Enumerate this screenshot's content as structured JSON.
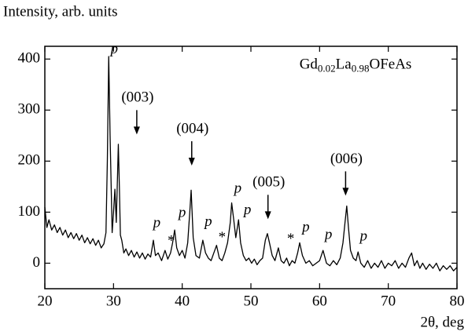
{
  "chart_data": {
    "type": "line",
    "title": [
      {
        "text": "Gd"
      },
      {
        "text": "0.02",
        "subscript": true
      },
      {
        "text": "La"
      },
      {
        "text": "0.98",
        "subscript": true
      },
      {
        "text": "OFeAs"
      }
    ],
    "y_label": "Intensity, arb. units",
    "x_label": "2θ, deg",
    "xlim": [
      20,
      80
    ],
    "ylim": [
      -50,
      425
    ],
    "xticks": [
      20,
      30,
      40,
      50,
      60,
      70,
      80
    ],
    "yticks": [
      0,
      100,
      200,
      300,
      400
    ],
    "x": [
      20,
      20.3,
      20.6,
      21,
      21.4,
      21.8,
      22.2,
      22.6,
      23,
      23.4,
      23.8,
      24.2,
      24.6,
      25,
      25.4,
      25.8,
      26.2,
      26.6,
      27,
      27.4,
      27.8,
      28.2,
      28.6,
      28.9,
      29.1,
      29.3,
      29.5,
      29.8,
      30,
      30.2,
      30.4,
      30.6,
      30.7,
      30.85,
      31,
      31.2,
      31.5,
      31.8,
      32.2,
      32.6,
      33,
      33.4,
      33.8,
      34.2,
      34.6,
      35,
      35.4,
      35.8,
      36.1,
      36.5,
      37,
      37.5,
      37.9,
      38.3,
      38.6,
      38.9,
      39.2,
      39.6,
      40,
      40.4,
      40.8,
      41.1,
      41.3,
      41.6,
      42,
      42.5,
      43,
      43.4,
      43.8,
      44.2,
      44.6,
      45,
      45.4,
      45.8,
      46.2,
      46.6,
      47,
      47.2,
      47.5,
      47.8,
      48.2,
      48.5,
      48.9,
      49.3,
      49.7,
      50.1,
      50.5,
      50.9,
      51.3,
      51.7,
      52.1,
      52.4,
      52.7,
      53.1,
      53.5,
      54,
      54.4,
      54.8,
      55.2,
      55.6,
      56,
      56.4,
      56.8,
      57.1,
      57.5,
      58,
      58.5,
      59,
      59.5,
      60,
      60.5,
      61,
      61.5,
      62,
      62.5,
      63,
      63.4,
      63.7,
      63.95,
      64.2,
      64.5,
      64.9,
      65.3,
      65.6,
      66,
      66.5,
      67,
      67.5,
      68,
      68.5,
      69,
      69.5,
      70,
      70.5,
      71,
      71.5,
      72,
      72.5,
      73,
      73.4,
      73.8,
      74.2,
      74.6,
      75,
      75.5,
      76,
      76.5,
      77,
      77.5,
      78,
      78.5,
      79,
      79.5,
      80
    ],
    "series": [
      {
        "color": "#000000",
        "values": [
          110,
          70,
          85,
          65,
          75,
          60,
          70,
          55,
          65,
          50,
          60,
          48,
          58,
          45,
          55,
          40,
          50,
          38,
          48,
          35,
          45,
          30,
          38,
          60,
          200,
          405,
          250,
          60,
          100,
          145,
          80,
          180,
          233,
          150,
          55,
          45,
          20,
          28,
          15,
          25,
          12,
          22,
          10,
          20,
          8,
          18,
          12,
          45,
          15,
          20,
          5,
          25,
          8,
          20,
          40,
          65,
          30,
          15,
          25,
          10,
          40,
          100,
          143,
          50,
          15,
          10,
          45,
          20,
          10,
          5,
          20,
          35,
          10,
          5,
          20,
          40,
          80,
          118,
          85,
          50,
          85,
          40,
          15,
          5,
          10,
          0,
          8,
          -3,
          5,
          10,
          45,
          58,
          40,
          15,
          5,
          30,
          5,
          0,
          10,
          -5,
          5,
          0,
          20,
          40,
          15,
          0,
          5,
          -5,
          0,
          5,
          25,
          0,
          -5,
          5,
          -3,
          10,
          40,
          80,
          112,
          70,
          25,
          10,
          5,
          22,
          0,
          -8,
          5,
          -10,
          0,
          -8,
          5,
          -10,
          0,
          -5,
          5,
          -10,
          0,
          -8,
          10,
          20,
          -5,
          5,
          -10,
          0,
          -12,
          -2,
          -10,
          0,
          -15,
          -5,
          -12,
          -5,
          -15,
          -8
        ]
      }
    ],
    "annotations": [
      {
        "text": "p",
        "x": 30.1,
        "y": 418,
        "italic": true
      },
      {
        "text": "(003)",
        "x": 33.5,
        "y": 323,
        "arrow": true
      },
      {
        "text": "(004)",
        "x": 41.5,
        "y": 262,
        "arrow": true
      },
      {
        "text": "(005)",
        "x": 52.6,
        "y": 157,
        "arrow": true
      },
      {
        "text": "(006)",
        "x": 63.9,
        "y": 203,
        "arrow": true
      },
      {
        "text": "p",
        "x": 36.3,
        "y": 77,
        "italic": true
      },
      {
        "text": "p",
        "x": 40.0,
        "y": 97,
        "italic": true
      },
      {
        "text": "p",
        "x": 43.8,
        "y": 80,
        "italic": true
      },
      {
        "text": "p",
        "x": 48.1,
        "y": 145,
        "italic": true
      },
      {
        "text": "p",
        "x": 49.5,
        "y": 103,
        "italic": true
      },
      {
        "text": "p",
        "x": 58.0,
        "y": 69,
        "italic": true
      },
      {
        "text": "p",
        "x": 61.3,
        "y": 54,
        "italic": true
      },
      {
        "text": "p",
        "x": 66.4,
        "y": 51,
        "italic": true
      },
      {
        "text": "*",
        "x": 38.4,
        "y": 42
      },
      {
        "text": "*",
        "x": 45.8,
        "y": 49
      },
      {
        "text": "*",
        "x": 55.8,
        "y": 46
      }
    ]
  }
}
